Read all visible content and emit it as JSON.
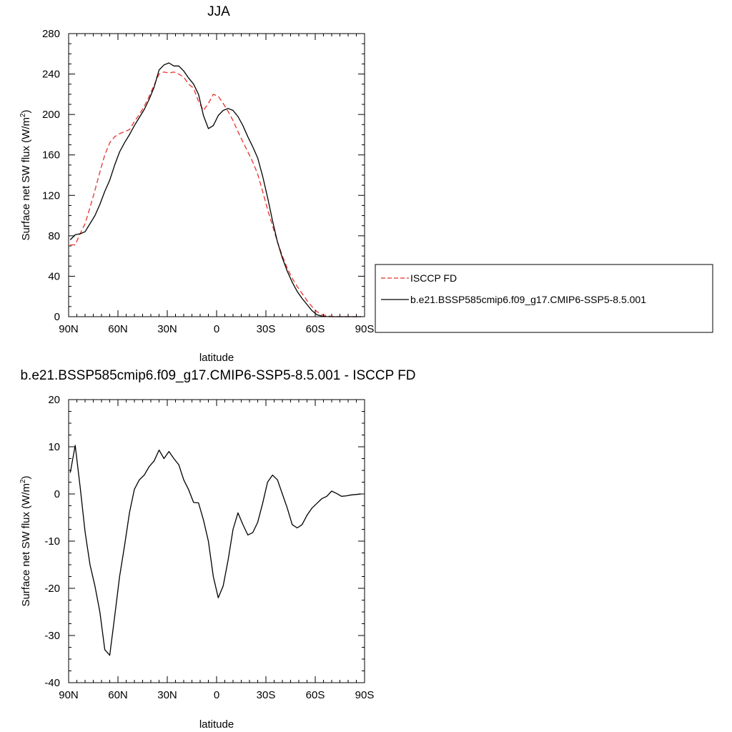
{
  "chart_data": [
    {
      "type": "line",
      "title": "JJA",
      "xlabel": "latitude",
      "ylabel": "Surface net SW flux (W/m",
      "ylabel_sup": "2",
      "ylabel_end": ")",
      "xlim": [
        90,
        -90
      ],
      "ylim": [
        0,
        280
      ],
      "xticks": [
        90,
        60,
        30,
        0,
        -30,
        -60,
        -90
      ],
      "xtick_labels": [
        "90N",
        "60N",
        "30N",
        "0",
        "30S",
        "60S",
        "90S"
      ],
      "yticks": [
        0,
        40,
        80,
        120,
        160,
        200,
        240,
        280
      ],
      "ytick_labels": [
        "0",
        "40",
        "80",
        "120",
        "160",
        "200",
        "240",
        "280"
      ],
      "x": [
        89,
        86,
        83,
        80,
        77,
        74,
        71,
        68,
        65,
        62,
        59,
        56,
        53,
        50,
        47,
        44,
        41,
        38,
        35,
        32,
        29,
        26,
        23,
        20,
        17,
        14,
        11,
        8,
        5,
        2,
        -1,
        -4,
        -7,
        -10,
        -13,
        -16,
        -19,
        -22,
        -25,
        -28,
        -31,
        -34,
        -37,
        -40,
        -43,
        -46,
        -49,
        -52,
        -55,
        -58,
        -61,
        -64,
        -67,
        -70,
        -73,
        -76,
        -79,
        -82,
        -85,
        -88
      ],
      "legend": {
        "placement": "right"
      },
      "series": [
        {
          "name": "ISCCP FD",
          "color": "#e8312b",
          "dash": true,
          "values": [
            71,
            71,
            82,
            92,
            108,
            125,
            143,
            160,
            172,
            178,
            181,
            183,
            185,
            193,
            200,
            208,
            218,
            229,
            240,
            242,
            241,
            242,
            240,
            237,
            230,
            226,
            213,
            204,
            211,
            220,
            218,
            211,
            203,
            194,
            183,
            173,
            163,
            153,
            141,
            124,
            106,
            90,
            74,
            60,
            48,
            38,
            30,
            23,
            16,
            10,
            5,
            2,
            1,
            0.3,
            0.1,
            0,
            0,
            0,
            0,
            0
          ]
        },
        {
          "name": "b.e21.BSSP585cmip6.f09_g17.CMIP6-SSP5-8.5.001",
          "color": "#000000",
          "dash": false,
          "values": [
            76,
            81,
            82,
            84,
            92,
            100,
            111,
            124,
            135,
            150,
            163,
            172,
            180,
            189,
            197,
            205,
            215,
            227,
            244,
            249,
            251,
            248,
            248,
            243,
            236,
            230,
            220,
            199,
            186,
            189,
            199,
            204,
            206,
            204,
            198,
            189,
            178,
            168,
            157,
            139,
            118,
            95,
            74,
            58,
            45,
            34,
            25,
            18,
            12,
            6,
            2,
            0.6,
            0.1,
            0,
            0,
            0,
            0,
            0,
            0,
            0
          ]
        }
      ]
    },
    {
      "type": "line",
      "title": "b.e21.BSSP585cmip6.f09_g17.CMIP6-SSP5-8.5.001 - ISCCP FD",
      "xlabel": "latitude",
      "ylabel": "Surface net SW flux (W/m",
      "ylabel_sup": "2",
      "ylabel_end": ")",
      "xlim": [
        90,
        -90
      ],
      "ylim": [
        -40,
        20
      ],
      "xticks": [
        90,
        60,
        30,
        0,
        -30,
        -60,
        -90
      ],
      "xtick_labels": [
        "90N",
        "60N",
        "30N",
        "0",
        "30S",
        "60S",
        "90S"
      ],
      "yticks": [
        -40,
        -30,
        -20,
        -10,
        0,
        10,
        20
      ],
      "ytick_labels": [
        "-40",
        "-30",
        "-20",
        "-10",
        "0",
        "10",
        "20"
      ],
      "x": [
        89,
        86,
        83,
        80,
        77,
        74,
        71,
        68,
        65,
        62,
        59,
        56,
        53,
        50,
        47,
        44,
        41,
        38,
        35,
        32,
        29,
        26,
        23,
        20,
        17,
        14,
        11,
        8,
        5,
        2,
        -1,
        -4,
        -7,
        -10,
        -13,
        -16,
        -19,
        -22,
        -25,
        -28,
        -31,
        -34,
        -37,
        -40,
        -43,
        -46,
        -49,
        -52,
        -55,
        -58,
        -61,
        -64,
        -67,
        -70,
        -73,
        -76,
        -79,
        -82,
        -85,
        -88
      ],
      "series": [
        {
          "color": "#000000",
          "dash": false,
          "values": [
            4.5,
            10.3,
            1.5,
            -8,
            -15,
            -19.5,
            -25,
            -33,
            -34.2,
            -26,
            -17.5,
            -11,
            -4,
            1,
            3,
            4,
            5.8,
            7,
            9.3,
            7.5,
            9,
            7.5,
            6.2,
            3,
            0.9,
            -1.8,
            -1.9,
            -5.5,
            -10,
            -17.5,
            -22,
            -19.5,
            -14,
            -7.5,
            -4,
            -6.5,
            -8.7,
            -8.2,
            -6,
            -2,
            2.5,
            4,
            3,
            0,
            -3,
            -6.5,
            -7.2,
            -6.5,
            -4.5,
            -3,
            -2,
            -1,
            -0.5,
            0.6,
            0.1,
            -0.5,
            -0.4,
            -0.2,
            -0.1,
            0
          ]
        }
      ]
    }
  ]
}
